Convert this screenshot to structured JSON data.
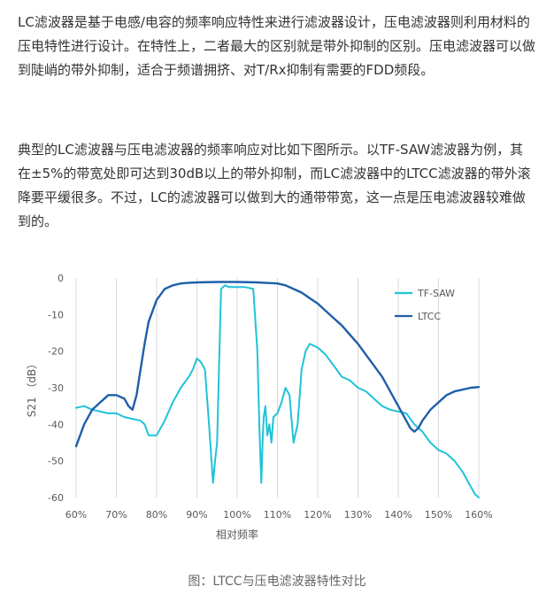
{
  "article": {
    "paragraph1": "LC滤波器是基于电感/电容的频率响应特性来进行滤波器设计，压电滤波器则利用材料的压电特性进行设计。在特性上，二者最大的区别就是带外抑制的区别。压电滤波器可以做到陡峭的带外抑制，适合于频谱拥挤、对T/Rx抑制有需要的FDD频段。",
    "paragraph2": "典型的LC滤波器与压电滤波器的频率响应对比如下图所示。以TF-SAW滤波器为例，其在±5%的带宽处即可达到30dB以上的带外抑制，而LC滤波器中的LTCC滤波器的带外滚降要平缓很多。不过，LC的滤波器可以做到大的通带带宽，这一点是压电滤波器较难做到的。",
    "caption": "图：LTCC与压电滤波器特性对比"
  },
  "colors": {
    "tf_saw": "#1fc3d8",
    "ltcc": "#1f5fa8",
    "grid": "#d9d9d9",
    "text": "#333333"
  },
  "chart_data": {
    "type": "line",
    "xlabel": "相对频率",
    "ylabel": "S21 （dB）",
    "x_ticks": [
      "60%",
      "70%",
      "80%",
      "90%",
      "100%",
      "110%",
      "120%",
      "130%",
      "140%",
      "150%",
      "160%"
    ],
    "y_ticks": [
      "0",
      "-10",
      "-20",
      "-30",
      "-40",
      "-50",
      "-60"
    ],
    "xlim": [
      60,
      160
    ],
    "ylim": [
      -60,
      0
    ],
    "grid": "vertical",
    "legend_position": "top-right",
    "series": [
      {
        "name": "TF-SAW",
        "color": "#1fc3d8",
        "x": [
          60,
          62,
          64,
          66,
          68,
          70,
          72,
          74,
          76,
          77,
          78,
          80,
          82,
          84,
          86,
          88,
          89,
          90,
          91,
          92,
          93,
          94,
          94.5,
          95,
          96,
          97,
          98,
          100,
          102,
          104,
          105,
          105.5,
          106,
          106.3,
          106.6,
          107,
          107.5,
          108,
          108.5,
          109,
          110,
          111,
          112,
          113,
          114,
          115,
          116,
          117,
          118,
          119,
          120,
          122,
          124,
          126,
          128,
          130,
          132,
          134,
          136,
          138,
          140,
          142,
          144,
          146,
          148,
          150,
          152,
          154,
          156,
          158,
          159,
          160
        ],
        "y": [
          -35.5,
          -35,
          -36,
          -36.5,
          -37,
          -37,
          -38,
          -38.5,
          -39,
          -40,
          -43,
          -43,
          -39,
          -34,
          -30,
          -27,
          -25,
          -22,
          -23,
          -25,
          -40,
          -56,
          -50,
          -45,
          -3,
          -2,
          -2.5,
          -2.5,
          -2.5,
          -3,
          -20,
          -40,
          -56,
          -45,
          -38,
          -35,
          -43,
          -40,
          -45,
          -38,
          -37,
          -34,
          -30,
          -32,
          -45,
          -40,
          -25,
          -20,
          -18,
          -18.5,
          -19,
          -21,
          -24,
          -27,
          -28,
          -30,
          -31,
          -33,
          -35,
          -36,
          -36.5,
          -37,
          -40,
          -42,
          -45,
          -47,
          -48,
          -50,
          -53,
          -57,
          -59,
          -61
        ]
      },
      {
        "name": "LTCC",
        "color": "#1f5fa8",
        "x": [
          60,
          62,
          64,
          66,
          68,
          70,
          72,
          73,
          74,
          75,
          76,
          77,
          78,
          80,
          82,
          84,
          86,
          88,
          90,
          95,
          100,
          105,
          110,
          112,
          114,
          116,
          118,
          120,
          122,
          124,
          126,
          128,
          130,
          132,
          134,
          136,
          138,
          140,
          141,
          142,
          143,
          144,
          145,
          146,
          148,
          150,
          152,
          154,
          156,
          158,
          160
        ],
        "y": [
          -46,
          -40,
          -36,
          -34,
          -32,
          -32,
          -33,
          -35,
          -36,
          -32,
          -25,
          -18,
          -12,
          -6,
          -3,
          -2,
          -1.5,
          -1.3,
          -1.2,
          -1.1,
          -1.1,
          -1.2,
          -1.5,
          -2,
          -3,
          -4,
          -5.5,
          -7,
          -9,
          -11,
          -13,
          -15.5,
          -18,
          -21,
          -24,
          -27,
          -31,
          -35,
          -37,
          -39,
          -41,
          -42,
          -41,
          -39,
          -36,
          -34,
          -32,
          -31,
          -30.5,
          -30,
          -29.8
        ]
      }
    ]
  }
}
